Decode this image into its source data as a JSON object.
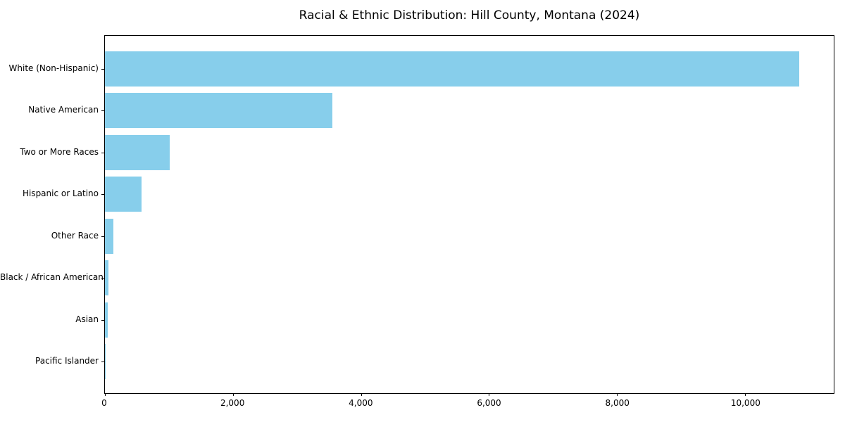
{
  "chart_data": {
    "type": "bar",
    "orientation": "horizontal",
    "title": "Racial & Ethnic Distribution: Hill County, Montana (2024)",
    "categories": [
      "White (Non-Hispanic)",
      "Native American",
      "Two or More Races",
      "Hispanic or Latino",
      "Other Race",
      "Black / African American",
      "Asian",
      "Pacific Islander"
    ],
    "values": [
      10845,
      3550,
      1010,
      570,
      130,
      50,
      40,
      5
    ],
    "xlabel": "",
    "ylabel": "",
    "xlim": [
      0,
      11385
    ],
    "xticks": [
      0,
      2000,
      4000,
      6000,
      8000,
      10000
    ],
    "xtick_labels": [
      "0",
      "2,000",
      "4,000",
      "6,000",
      "8,000",
      "10,000"
    ],
    "grid": false,
    "legend_position": "none",
    "bar_color": "#87CEEB",
    "spine_color": "#000000",
    "text_color": "#000000",
    "background_color": "#ffffff"
  }
}
